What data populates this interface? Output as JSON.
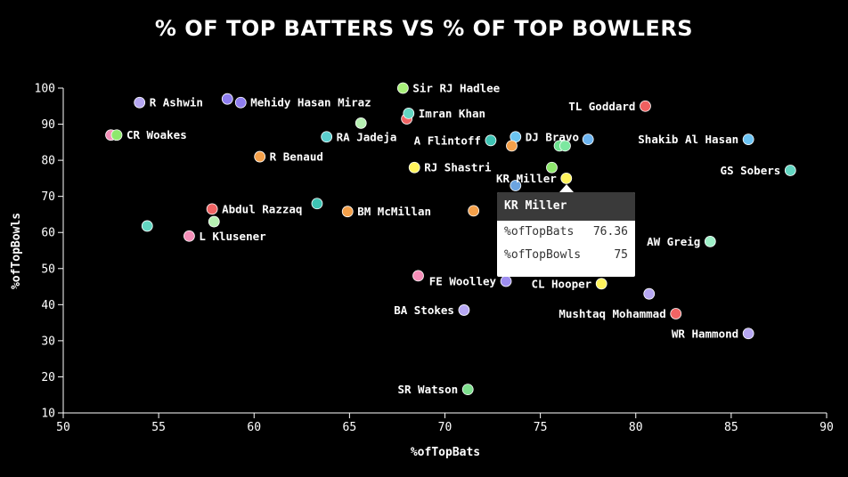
{
  "chart_data": {
    "type": "scatter",
    "title": "% OF TOP BATTERS VS % OF TOP BOWLERS",
    "xlabel": "%ofTopBats",
    "ylabel": "%ofTopBowls",
    "xlim": [
      50,
      90
    ],
    "ylim": [
      10,
      100
    ],
    "xticks": [
      50,
      55,
      60,
      65,
      70,
      75,
      80,
      85,
      90
    ],
    "yticks": [
      10,
      20,
      30,
      40,
      50,
      60,
      70,
      80,
      90,
      100
    ],
    "grid": false,
    "points": [
      {
        "name": "R Ashwin",
        "x": 54.0,
        "y": 96.0,
        "color": "#b6a7f2",
        "label": "R Ashwin",
        "pos": "right"
      },
      {
        "name": "",
        "x": 58.6,
        "y": 97.0,
        "color": "#8f7ef0",
        "label": "",
        "pos": "right"
      },
      {
        "name": "Mehidy Hasan Miraz",
        "x": 59.3,
        "y": 96.0,
        "color": "#8f7ef0",
        "label": "Mehidy Hasan Miraz",
        "pos": "right"
      },
      {
        "name": "Sir RJ Hadlee",
        "x": 67.8,
        "y": 100.0,
        "color": "#a8f07a",
        "label": "Sir RJ Hadlee",
        "pos": "right"
      },
      {
        "name": "",
        "x": 65.6,
        "y": 90.3,
        "color": "#b6f0b2",
        "label": "",
        "pos": "right"
      },
      {
        "name": "",
        "x": 68.0,
        "y": 91.5,
        "color": "#f06464",
        "label": "",
        "pos": "right"
      },
      {
        "name": "Imran Khan",
        "x": 68.1,
        "y": 93.0,
        "color": "#63d6c2",
        "label": "Imran Khan",
        "pos": "right"
      },
      {
        "name": "TL Goddard",
        "x": 80.5,
        "y": 95.0,
        "color": "#f06060",
        "label": "TL Goddard",
        "pos": "left"
      },
      {
        "name": "",
        "x": 52.5,
        "y": 87.0,
        "color": "#f48fb8",
        "label": "",
        "pos": "right"
      },
      {
        "name": "CR Woakes",
        "x": 52.8,
        "y": 87.0,
        "color": "#8fe86e",
        "label": "CR Woakes",
        "pos": "right"
      },
      {
        "name": "RA Jadeja",
        "x": 63.8,
        "y": 86.5,
        "color": "#5ccfcf",
        "label": "RA Jadeja",
        "pos": "right"
      },
      {
        "name": "A Flintoff",
        "x": 72.4,
        "y": 85.5,
        "color": "#3ec4b4",
        "label": "A Flintoff",
        "pos": "left"
      },
      {
        "name": "DJ Bravo",
        "x": 73.7,
        "y": 86.5,
        "color": "#6cc4f0",
        "label": "DJ Bravo",
        "pos": "right"
      },
      {
        "name": "",
        "x": 73.5,
        "y": 84.0,
        "color": "#f4a04a",
        "label": "",
        "pos": "right"
      },
      {
        "name": "",
        "x": 76.0,
        "y": 84.0,
        "color": "#6ce08e",
        "label": "",
        "pos": "right"
      },
      {
        "name": "",
        "x": 76.3,
        "y": 84.0,
        "color": "#7de8a0",
        "label": "",
        "pos": "right"
      },
      {
        "name": "",
        "x": 77.5,
        "y": 85.8,
        "color": "#6cb4f0",
        "label": "",
        "pos": "right"
      },
      {
        "name": "Shakib Al Hasan",
        "x": 85.9,
        "y": 85.8,
        "color": "#6cc4f4",
        "label": "Shakib Al Hasan",
        "pos": "left"
      },
      {
        "name": "R Benaud",
        "x": 60.3,
        "y": 81.0,
        "color": "#f4a04a",
        "label": "R Benaud",
        "pos": "right"
      },
      {
        "name": "RJ Shastri",
        "x": 68.4,
        "y": 78.0,
        "color": "#fff35c",
        "label": "RJ Shastri",
        "pos": "right"
      },
      {
        "name": "",
        "x": 75.6,
        "y": 78.0,
        "color": "#8fe86e",
        "label": "",
        "pos": "right"
      },
      {
        "name": "GS Sobers",
        "x": 88.1,
        "y": 77.2,
        "color": "#63d6c2",
        "label": "GS Sobers",
        "pos": "left"
      },
      {
        "name": "KR Miller",
        "x": 76.36,
        "y": 75.0,
        "color": "#fff35c",
        "label": "KR Miller",
        "pos": "left"
      },
      {
        "name": "",
        "x": 73.7,
        "y": 73.0,
        "color": "#6ca4e0",
        "label": "",
        "pos": "right"
      },
      {
        "name": "Abdul Razzaq",
        "x": 57.8,
        "y": 66.5,
        "color": "#f06464",
        "label": "Abdul Razzaq",
        "pos": "right"
      },
      {
        "name": "",
        "x": 63.3,
        "y": 68.0,
        "color": "#3ec4b4",
        "label": "",
        "pos": "right"
      },
      {
        "name": "BM McMillan",
        "x": 64.9,
        "y": 65.8,
        "color": "#f4a04a",
        "label": "BM McMillan",
        "pos": "right"
      },
      {
        "name": "",
        "x": 71.5,
        "y": 66.0,
        "color": "#f4a04a",
        "label": "",
        "pos": "right"
      },
      {
        "name": "",
        "x": 54.4,
        "y": 61.8,
        "color": "#63d6c2",
        "label": "",
        "pos": "right"
      },
      {
        "name": "",
        "x": 57.9,
        "y": 63.0,
        "color": "#b6f0b2",
        "label": "",
        "pos": "right"
      },
      {
        "name": "L Klusener",
        "x": 56.6,
        "y": 59.0,
        "color": "#f48fb8",
        "label": "L Klusener",
        "pos": "right"
      },
      {
        "name": "AW Greig",
        "x": 83.9,
        "y": 57.5,
        "color": "#9ef0c8",
        "label": "AW Greig",
        "pos": "left"
      },
      {
        "name": "",
        "x": 68.6,
        "y": 48.0,
        "color": "#f48fb8",
        "label": "",
        "pos": "right"
      },
      {
        "name": "FE Woolley",
        "x": 73.2,
        "y": 46.5,
        "color": "#9e8ef0",
        "label": "FE Woolley",
        "pos": "left"
      },
      {
        "name": "CL Hooper",
        "x": 78.2,
        "y": 45.8,
        "color": "#fff35c",
        "label": "CL Hooper",
        "pos": "left"
      },
      {
        "name": "",
        "x": 80.7,
        "y": 43.0,
        "color": "#b6a7f2",
        "label": "",
        "pos": "right"
      },
      {
        "name": "BA Stokes",
        "x": 71.0,
        "y": 38.5,
        "color": "#b6a7f2",
        "label": "BA Stokes",
        "pos": "left"
      },
      {
        "name": "Mushtaq Mohammad",
        "x": 82.1,
        "y": 37.5,
        "color": "#f06464",
        "label": "Mushtaq Mohammad",
        "pos": "left"
      },
      {
        "name": "WR Hammond",
        "x": 85.9,
        "y": 32.0,
        "color": "#b6a7f2",
        "label": "WR Hammond",
        "pos": "left"
      },
      {
        "name": "SR Watson",
        "x": 71.2,
        "y": 16.5,
        "color": "#7ee08e",
        "label": "SR Watson",
        "pos": "left"
      }
    ]
  },
  "tooltip": {
    "title": "KR Miller",
    "rows": [
      {
        "key": "%ofTopBats",
        "value": "76.36"
      },
      {
        "key": "%ofTopBowls",
        "value": "75"
      }
    ]
  }
}
